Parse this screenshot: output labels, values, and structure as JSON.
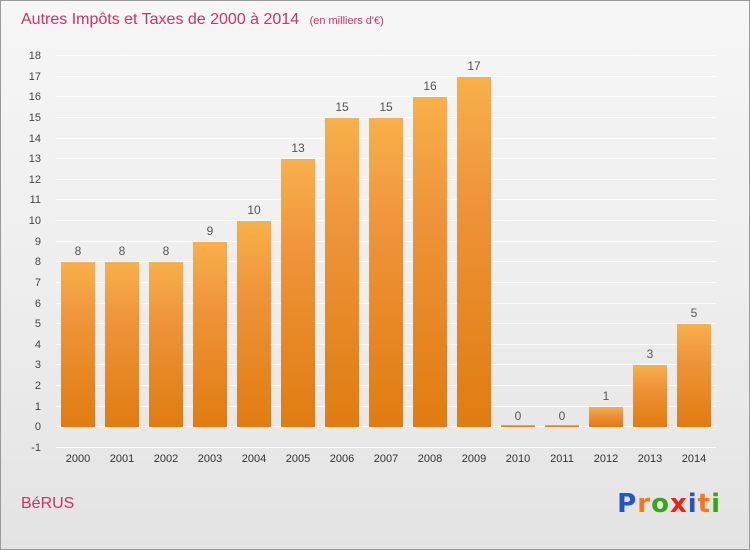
{
  "title": "Autres Impôts et Taxes de 2000 à 2014",
  "subtitle": "(en milliers d'€)",
  "footer": {
    "label": "BéRUS"
  },
  "logo": {
    "letters": [
      {
        "ch": "P",
        "color": "#2255cc"
      },
      {
        "ch": "r",
        "color": "#ff7711"
      },
      {
        "ch": "o",
        "color": "#33aa11"
      },
      {
        "ch": "x",
        "color": "#ee2211"
      },
      {
        "ch": "i",
        "color": "#2255cc"
      },
      {
        "ch": "t",
        "color": "#ff7711"
      },
      {
        "ch": "i",
        "color": "#33aa11"
      }
    ]
  },
  "colors": {
    "title": "#cc3366",
    "bar_top": "#f8b04a",
    "bar_bottom": "#e07c10",
    "grid": "#ffffff",
    "tick_text": "#444444",
    "value_text": "#555555"
  },
  "chart_data": {
    "type": "bar",
    "title": "Autres Impôts et Taxes de 2000 à 2014 (en milliers d'€)",
    "categories": [
      "2000",
      "2001",
      "2002",
      "2003",
      "2004",
      "2005",
      "2006",
      "2007",
      "2008",
      "2009",
      "2010",
      "2011",
      "2012",
      "2013",
      "2014"
    ],
    "values": [
      8,
      8,
      8,
      9,
      10,
      13,
      15,
      15,
      16,
      17,
      0,
      0,
      1,
      3,
      5
    ],
    "xlabel": "",
    "ylabel": "",
    "ylim": [
      -1,
      18
    ],
    "ytick_step": 1,
    "grid": true,
    "legend": "none"
  }
}
